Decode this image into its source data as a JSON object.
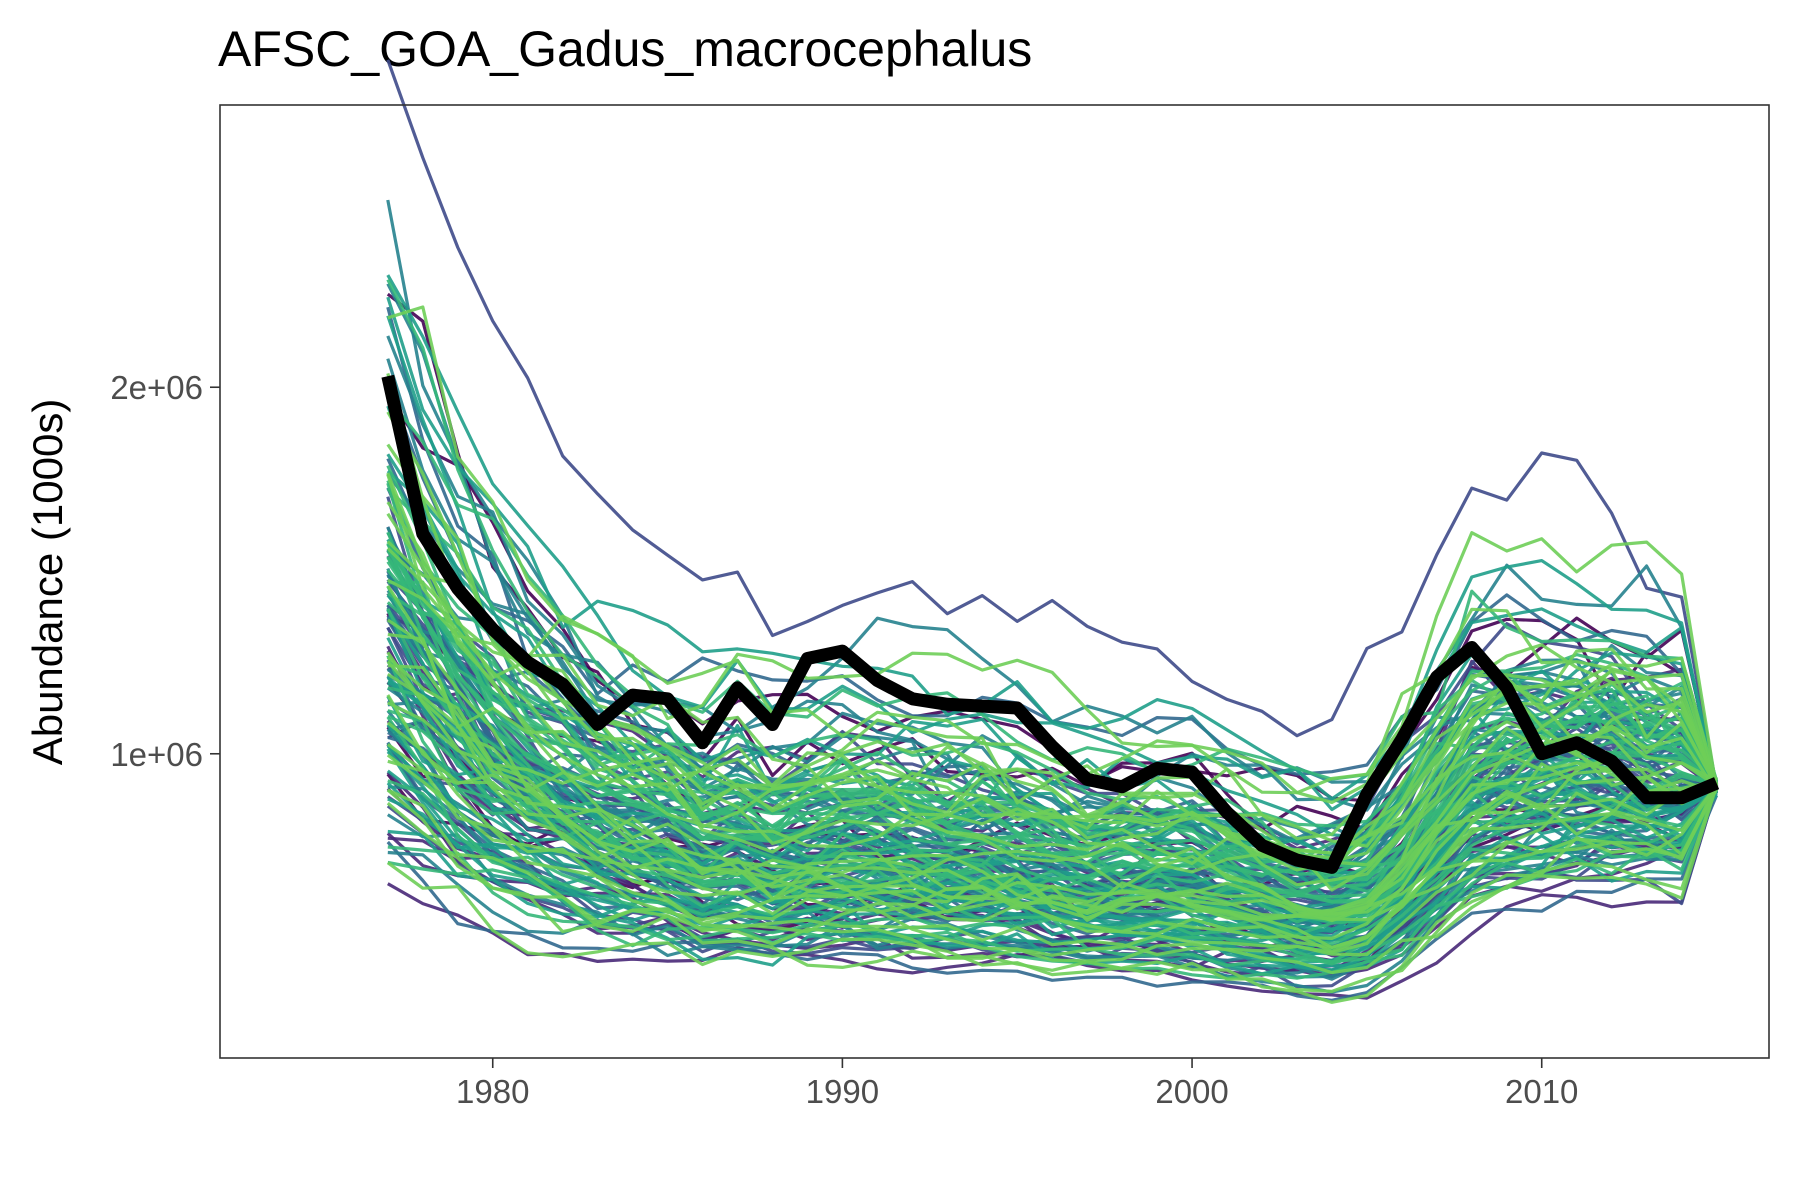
{
  "chart_data": {
    "type": "line",
    "title": "AFSC_GOA_Gadus_macrocephalus",
    "xlabel": "",
    "ylabel": "Abundance (1000s)",
    "xlim": [
      1972.2,
      2016.5
    ],
    "ylim": [
      170000,
      2770000
    ],
    "x_ticks": [
      1980,
      1990,
      2000,
      2010
    ],
    "x_tick_labels": [
      "1980",
      "1990",
      "2000",
      "2010"
    ],
    "y_ticks": [
      1000000,
      2000000
    ],
    "y_tick_labels": [
      "1e+06",
      "2e+06"
    ],
    "grid": false,
    "legend": "none",
    "ensemble": {
      "description_count": 160,
      "palette": [
        "#440154",
        "#482878",
        "#3e4a89",
        "#31688e",
        "#26828e",
        "#1f9e89",
        "#35b779",
        "#6ece58"
      ],
      "seed": 7
    },
    "highlight_series": {
      "color": "#000000",
      "x": [
        1977,
        1978,
        1979,
        1980,
        1981,
        1982,
        1983,
        1984,
        1985,
        1986,
        1987,
        1988,
        1989,
        1990,
        1991,
        1992,
        1993,
        1994,
        1995,
        1996,
        1997,
        1998,
        1999,
        2000,
        2001,
        2002,
        2003,
        2004,
        2005,
        2006,
        2007,
        2008,
        2009,
        2010,
        2011,
        2012,
        2013,
        2014,
        2015
      ],
      "values": [
        2030000,
        1600000,
        1450000,
        1340000,
        1250000,
        1190000,
        1080000,
        1160000,
        1150000,
        1030000,
        1180000,
        1080000,
        1260000,
        1280000,
        1200000,
        1150000,
        1135000,
        1130000,
        1125000,
        1020000,
        930000,
        910000,
        960000,
        950000,
        840000,
        750000,
        710000,
        690000,
        890000,
        1040000,
        1210000,
        1290000,
        1180000,
        1000000,
        1030000,
        980000,
        880000,
        880000,
        920000
      ]
    },
    "ensemble_median": {
      "x": [
        1977,
        1978,
        1979,
        1980,
        1981,
        1982,
        1983,
        1984,
        1985,
        1986,
        1987,
        1988,
        1989,
        1990,
        1991,
        1992,
        1993,
        1994,
        1995,
        1996,
        1997,
        1998,
        1999,
        2000,
        2001,
        2002,
        2003,
        2004,
        2005,
        2006,
        2007,
        2008,
        2009,
        2010,
        2011,
        2012,
        2013,
        2014,
        2015
      ],
      "values": [
        1300000,
        1180000,
        1070000,
        980000,
        910000,
        860000,
        810000,
        780000,
        760000,
        720000,
        730000,
        700000,
        720000,
        730000,
        720000,
        710000,
        700000,
        700000,
        690000,
        670000,
        650000,
        650000,
        650000,
        640000,
        620000,
        600000,
        580000,
        570000,
        600000,
        680000,
        790000,
        900000,
        930000,
        940000,
        950000,
        940000,
        920000,
        910000,
        910000
      ]
    }
  }
}
